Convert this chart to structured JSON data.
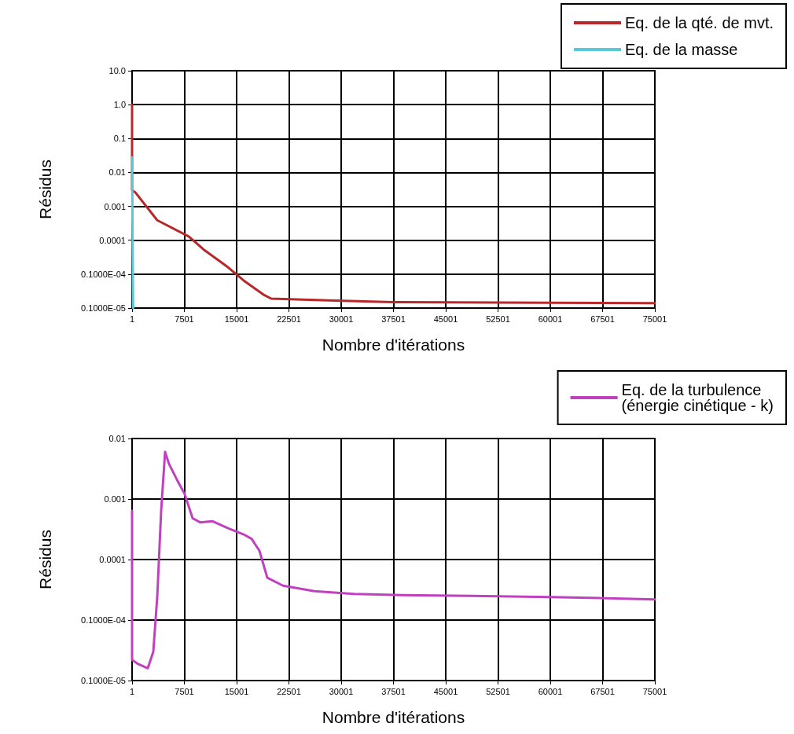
{
  "chart_data": [
    {
      "type": "line",
      "xlabel": "Nombre d'itérations",
      "ylabel": "Résidus",
      "log": "y",
      "grid": true,
      "legend": "top right",
      "marker": "none",
      "line_style": "solid",
      "xlim": [
        1,
        75001
      ],
      "xticks": [
        1,
        7501,
        15001,
        22501,
        30001,
        37501,
        45001,
        52501,
        60001,
        67501,
        75001
      ],
      "ylim": [
        1e-06,
        10
      ],
      "yticks": [
        {
          "value": 10,
          "label": "10.0"
        },
        {
          "value": 1,
          "label": "1.0"
        },
        0.1,
        0.01,
        0.001,
        0.0001,
        {
          "value": 1e-05,
          "label": "0.1000E-04"
        },
        {
          "value": 1e-06,
          "label": "0.1000E-05"
        }
      ],
      "series": [
        {
          "name": "Eq. de la qté. de mvt.",
          "color": "#b8282a",
          "x": [
            1,
            1,
            452,
            3610,
            8121,
            10376,
            13760,
            16016,
            18835,
            19963,
            27293,
            37443,
            75001
          ],
          "values": [
            1,
            0.003,
            0.0026,
            0.00039,
            0.00013,
            5.1e-05,
            1.6e-05,
            6.5e-06,
            2.5e-06,
            1.9e-06,
            1.7e-06,
            1.5e-06,
            1.4e-06
          ]
        },
        {
          "name": "Eq. de la masse",
          "color": "#5bc8d8",
          "x": [
            1,
            150
          ],
          "values": [
            0.028,
            1e-06
          ]
        }
      ]
    },
    {
      "type": "line",
      "xlabel": "Nombre d'itérations",
      "ylabel": "Résidus",
      "log": "y",
      "grid": true,
      "legend": "top right",
      "marker": "none",
      "line_style": "solid",
      "xlim": [
        1,
        75001
      ],
      "xticks": [
        1,
        7501,
        15001,
        22501,
        30001,
        37501,
        45001,
        52501,
        60001,
        67501,
        75001
      ],
      "ylim": [
        1e-06,
        0.01
      ],
      "yticks": [
        0.01,
        0.001,
        0.0001,
        {
          "value": 1e-05,
          "label": "0.1000E-04"
        },
        {
          "value": 1e-06,
          "label": "0.1000E-05"
        }
      ],
      "series": [
        {
          "name": "Eq. de la turbulence (énergie cinétique - k)",
          "color": "#c040c0",
          "x": [
            1,
            1,
            790,
            2257,
            3046,
            3610,
            4174,
            4738,
            5301,
            6429,
            7557,
            8685,
            9813,
            11504,
            13760,
            16016,
            17144,
            18271,
            19399,
            21655,
            26166,
            31806,
            37443,
            48723,
            60000,
            75001
          ],
          "values": [
            0.00064,
            2.2e-06,
            1.9e-06,
            1.6e-06,
            3e-06,
            2.4e-05,
            0.00064,
            0.006,
            0.0038,
            0.0021,
            0.0012,
            0.00048,
            0.00041,
            0.00043,
            0.00033,
            0.00026,
            0.00022,
            0.00014,
            5e-05,
            3.7e-05,
            3e-05,
            2.7e-05,
            2.6e-05,
            2.5e-05,
            2.4e-05,
            2.2e-05
          ]
        }
      ]
    }
  ]
}
